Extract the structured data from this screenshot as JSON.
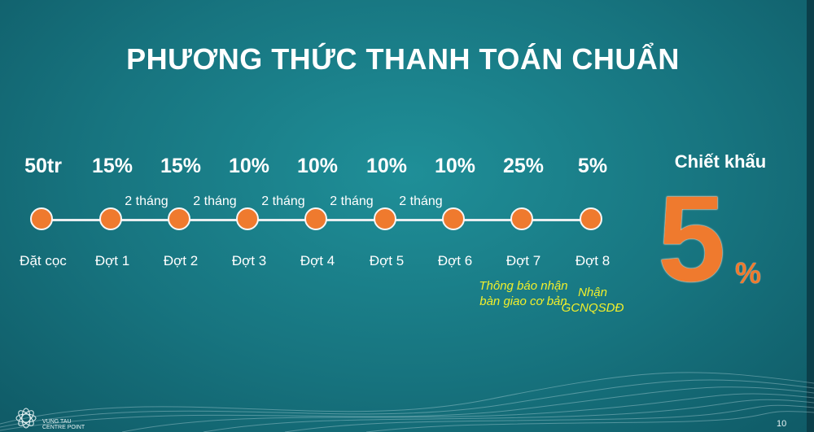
{
  "title": "PHƯƠNG THỨC THANH TOÁN CHUẨN",
  "stages": [
    {
      "amount": "50tr",
      "label": "Đặt cọc",
      "note": ""
    },
    {
      "amount": "15%",
      "label": "Đợt 1",
      "note": ""
    },
    {
      "amount": "15%",
      "label": "Đợt 2",
      "note": ""
    },
    {
      "amount": "10%",
      "label": "Đợt 3",
      "note": ""
    },
    {
      "amount": "10%",
      "label": "Đợt 4",
      "note": ""
    },
    {
      "amount": "10%",
      "label": "Đợt 5",
      "note": ""
    },
    {
      "amount": "10%",
      "label": "Đợt 6",
      "note": ""
    },
    {
      "amount": "25%",
      "label": "Đợt 7",
      "note": "Thông báo nhận bàn giao cơ bản"
    },
    {
      "amount": "5%",
      "label": "Đợt 8",
      "note": "Nhận GCNQSDĐ"
    }
  ],
  "intervals": [
    "2 tháng",
    "2 tháng",
    "2 tháng",
    "2 tháng",
    "2 tháng"
  ],
  "discount": {
    "title": "Chiết khấu",
    "value": "5",
    "unit": "%"
  },
  "logo": {
    "line1": "VUNG TAU",
    "line2": "CENTRE POINT"
  },
  "page_number": "10",
  "colors": {
    "accent": "#ef7a2e",
    "note": "#f2ef2b",
    "background": "#17747f"
  }
}
